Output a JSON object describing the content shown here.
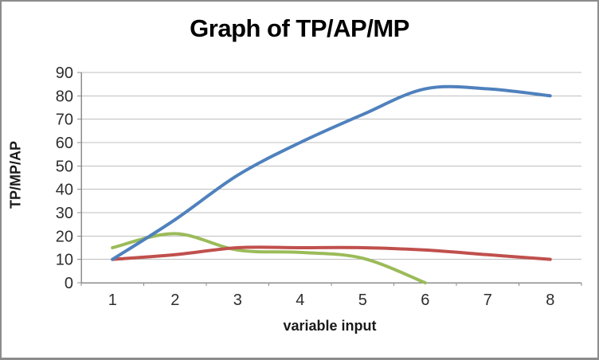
{
  "window": {
    "background": "#FFFFFF",
    "border_color": "#8C8C8C"
  },
  "chart_data": {
    "type": "line",
    "title": "Graph of TP/AP/MP",
    "xlabel": "variable input",
    "ylabel": "TP/MP/AP",
    "x_ticks": [
      "1",
      "2",
      "3",
      "4",
      "5",
      "6",
      "7",
      "8"
    ],
    "y_ticks": [
      "0",
      "10",
      "20",
      "30",
      "40",
      "50",
      "60",
      "70",
      "80",
      "90"
    ],
    "xlim": [
      1,
      8
    ],
    "ylim": [
      0,
      90
    ],
    "grid": "horizontal-only",
    "legend": "none",
    "smoothed_lines": true,
    "series": [
      {
        "name": "TP",
        "color": "#4F81BD",
        "x": [
          1,
          2,
          3,
          4,
          5,
          6,
          7,
          8
        ],
        "values": [
          10,
          27,
          46,
          60,
          72,
          83,
          83,
          80
        ]
      },
      {
        "name": "AP",
        "color": "#C0504D",
        "x": [
          1,
          2,
          3,
          4,
          5,
          6,
          7,
          8
        ],
        "values": [
          10,
          12,
          15,
          15,
          15,
          14,
          12,
          10
        ]
      },
      {
        "name": "MP",
        "color": "#9BBB59",
        "x": [
          1,
          2,
          3,
          4,
          5,
          6
        ],
        "values": [
          15,
          21,
          14,
          13,
          10.5,
          0
        ]
      }
    ],
    "style": {
      "gridline_color": "#BFBFBF",
      "axis_color": "#8C8C8C",
      "tick_label_color": "#2E2E2E",
      "title_color": "#000000",
      "line_width": 4
    }
  }
}
